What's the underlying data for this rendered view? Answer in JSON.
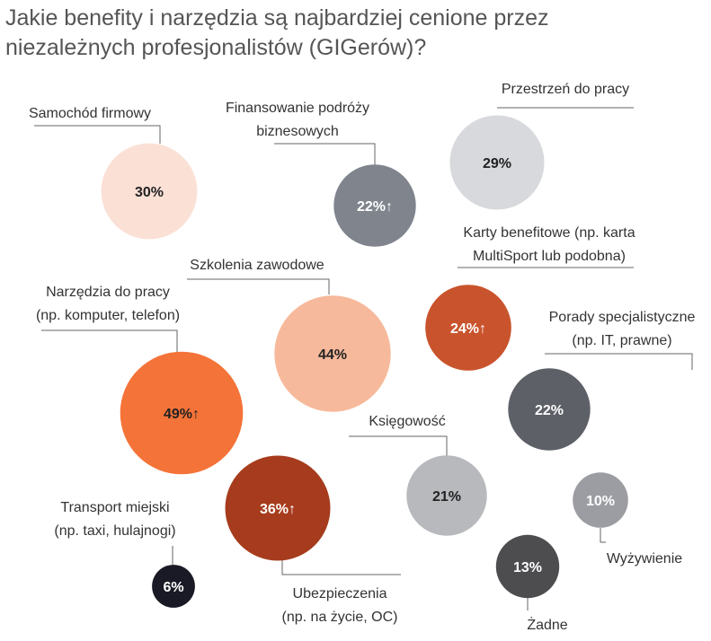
{
  "chart_data": {
    "type": "bubble",
    "title_lines": [
      "Jakie benefity i narzędzia są najbardziej cenione przez",
      "niezależnych profesjonalistów (GIGerów)?"
    ],
    "unit": "%",
    "increase_marker": "↑",
    "items": [
      {
        "id": "samochod",
        "label_lines": [
          "Samochód firmowy"
        ],
        "value": 30,
        "increase": false,
        "color": "#fbe0d6",
        "text_color": "#222222"
      },
      {
        "id": "finansowanie",
        "label_lines": [
          "Finansowanie podróży",
          "biznesowych"
        ],
        "value": 22,
        "increase": true,
        "color": "#7f848d",
        "text_color": "#ffffff"
      },
      {
        "id": "przestrzen",
        "label_lines": [
          "Przestrzeń do pracy"
        ],
        "value": 29,
        "increase": false,
        "color": "#d8d9dc",
        "text_color": "#222222"
      },
      {
        "id": "szkolenia",
        "label_lines": [
          "Szkolenia zawodowe"
        ],
        "value": 44,
        "increase": false,
        "color": "#f7b99b",
        "text_color": "#222222"
      },
      {
        "id": "karty",
        "label_lines": [
          "Karty benefitowe (np. karta",
          "MultiSport lub podobna)"
        ],
        "value": 24,
        "increase": true,
        "color": "#c9532c",
        "text_color": "#ffffff"
      },
      {
        "id": "narzedzia",
        "label_lines": [
          "Narzędzia do pracy",
          "(np. komputer, telefon)"
        ],
        "value": 49,
        "increase": true,
        "color": "#f47338",
        "text_color": "#222222"
      },
      {
        "id": "porady",
        "label_lines": [
          "Porady specjalistyczne",
          "(np. IT, prawne)"
        ],
        "value": 22,
        "increase": false,
        "color": "#5e6068",
        "text_color": "#ffffff"
      },
      {
        "id": "ksiegowosc",
        "label_lines": [
          "Księgowość"
        ],
        "value": 21,
        "increase": false,
        "color": "#b8b9bd",
        "text_color": "#222222"
      },
      {
        "id": "ubezpieczenia",
        "label_lines": [
          "Ubezpieczenia",
          "(np. na życie, OC)"
        ],
        "value": 36,
        "increase": true,
        "color": "#a63c1d",
        "text_color": "#ffffff"
      },
      {
        "id": "transport",
        "label_lines": [
          "Transport miejski",
          "(np. taxi, hulajnogi)"
        ],
        "value": 6,
        "increase": false,
        "color": "#1a1a26",
        "text_color": "#ffffff"
      },
      {
        "id": "wyzywienie",
        "label_lines": [
          "Wyżywienie"
        ],
        "value": 10,
        "increase": false,
        "color": "#9c9da2",
        "text_color": "#ffffff"
      },
      {
        "id": "zadne",
        "label_lines": [
          "Żadne"
        ],
        "value": 13,
        "increase": false,
        "color": "#4d4d4f",
        "text_color": "#ffffff"
      }
    ]
  }
}
